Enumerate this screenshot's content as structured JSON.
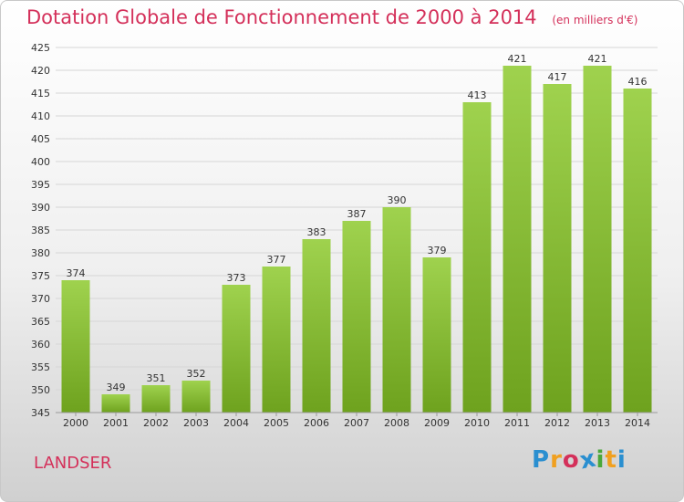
{
  "header": {
    "title": "Dotation Globale de Fonctionnement de 2000 à 2014",
    "unit": "(en milliers d'€)"
  },
  "footer": {
    "commune": "LANDSER",
    "logo": {
      "letters": [
        "P",
        "r",
        "o",
        "x",
        "i",
        "t",
        "i"
      ],
      "colors": [
        "#2a8fd0",
        "#f0a020",
        "#d4305a",
        "#2a8fd0",
        "#4aa83a",
        "#f0a020",
        "#2a8fd0"
      ]
    }
  },
  "colors": {
    "bar_light": "#9fd24e",
    "bar_dark": "#6ea21e",
    "grid": "#d6d6d6",
    "axis": "#999999",
    "text": "#333333"
  },
  "chart_data": {
    "type": "bar",
    "categories": [
      "2000",
      "2001",
      "2002",
      "2003",
      "2004",
      "2005",
      "2006",
      "2007",
      "2008",
      "2009",
      "2010",
      "2011",
      "2012",
      "2013",
      "2014"
    ],
    "values": [
      374,
      349,
      351,
      352,
      373,
      377,
      383,
      387,
      390,
      379,
      413,
      421,
      417,
      421,
      416
    ],
    "data_labels": [
      "374",
      "349",
      "351",
      "352",
      "373",
      "377",
      "383",
      "387",
      "390",
      "379",
      "413",
      "421",
      "417",
      "421",
      "416"
    ],
    "ylim": [
      345,
      425
    ],
    "yticks": [
      345,
      350,
      355,
      360,
      365,
      370,
      375,
      380,
      385,
      390,
      395,
      400,
      405,
      410,
      415,
      420,
      425
    ],
    "grid": true,
    "legend": "none"
  }
}
